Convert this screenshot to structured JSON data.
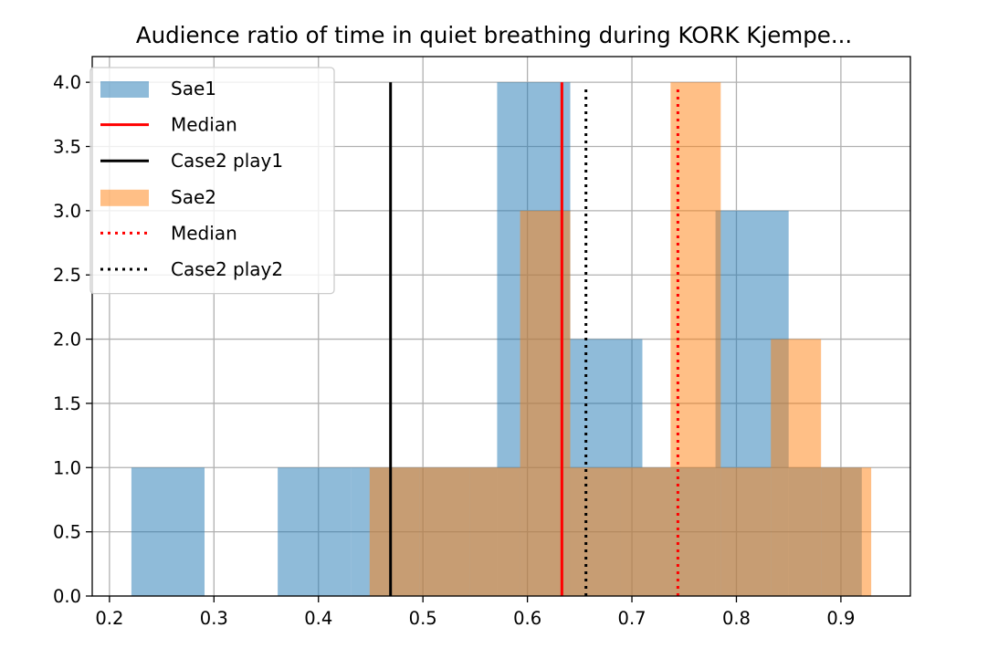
{
  "chart_data": {
    "type": "bar",
    "title": "Audience ratio of time in quiet breathing during KORK Kjempe...",
    "xlabel": "",
    "ylabel": "",
    "xlim": [
      0.1835,
      0.9665
    ],
    "ylim": [
      0,
      4.2
    ],
    "x_ticks": [
      0.2,
      0.3,
      0.4,
      0.5,
      0.6,
      0.7,
      0.8,
      0.9
    ],
    "x_tick_labels": [
      "0.2",
      "0.3",
      "0.4",
      "0.5",
      "0.6",
      "0.7",
      "0.8",
      "0.9"
    ],
    "y_ticks": [
      0.0,
      0.5,
      1.0,
      1.5,
      2.0,
      2.5,
      3.0,
      3.5,
      4.0
    ],
    "y_tick_labels": [
      "0.0",
      "0.5",
      "1.0",
      "1.5",
      "2.0",
      "2.5",
      "3.0",
      "3.5",
      "4.0"
    ],
    "grid": true,
    "legend_position": "upper-left",
    "series": [
      {
        "name": "Sae1",
        "kind": "histogram",
        "color": "#1f77b4",
        "alpha": 0.5,
        "bins": [
          {
            "start": 0.221,
            "end": 0.291,
            "count": 1
          },
          {
            "start": 0.291,
            "end": 0.361,
            "count": 0
          },
          {
            "start": 0.361,
            "end": 0.431,
            "count": 1
          },
          {
            "start": 0.431,
            "end": 0.501,
            "count": 1
          },
          {
            "start": 0.501,
            "end": 0.571,
            "count": 1
          },
          {
            "start": 0.571,
            "end": 0.641,
            "count": 4
          },
          {
            "start": 0.641,
            "end": 0.71,
            "count": 2
          },
          {
            "start": 0.71,
            "end": 0.78,
            "count": 1
          },
          {
            "start": 0.78,
            "end": 0.85,
            "count": 3
          },
          {
            "start": 0.85,
            "end": 0.92,
            "count": 1
          }
        ]
      },
      {
        "name": "Sae2",
        "kind": "histogram",
        "color": "#ff7f0e",
        "alpha": 0.5,
        "bins": [
          {
            "start": 0.449,
            "end": 0.497,
            "count": 1
          },
          {
            "start": 0.497,
            "end": 0.545,
            "count": 1
          },
          {
            "start": 0.545,
            "end": 0.593,
            "count": 1
          },
          {
            "start": 0.593,
            "end": 0.641,
            "count": 3
          },
          {
            "start": 0.641,
            "end": 0.689,
            "count": 1
          },
          {
            "start": 0.689,
            "end": 0.737,
            "count": 1
          },
          {
            "start": 0.737,
            "end": 0.785,
            "count": 4
          },
          {
            "start": 0.785,
            "end": 0.833,
            "count": 1
          },
          {
            "start": 0.833,
            "end": 0.881,
            "count": 2
          },
          {
            "start": 0.881,
            "end": 0.929,
            "count": 1
          }
        ]
      }
    ],
    "reference_lines": [
      {
        "name": "Median",
        "x": 0.633,
        "y_max": 4.0,
        "color": "#ff0000",
        "style": "solid"
      },
      {
        "name": "Case2 play1",
        "x": 0.469,
        "y_max": 4.0,
        "color": "#000000",
        "style": "solid"
      },
      {
        "name": "Median",
        "x": 0.744,
        "y_max": 3.95,
        "color": "#ff0000",
        "style": "dotted"
      },
      {
        "name": "Case2 play2",
        "x": 0.656,
        "y_max": 3.95,
        "color": "#000000",
        "style": "dotted"
      }
    ],
    "legend": [
      {
        "label": "Sae1",
        "kind": "patch",
        "color": "#1f77b4",
        "alpha": 0.5,
        "style": "solid"
      },
      {
        "label": "Median",
        "kind": "line",
        "color": "#ff0000",
        "style": "solid"
      },
      {
        "label": "Case2 play1",
        "kind": "line",
        "color": "#000000",
        "style": "solid"
      },
      {
        "label": "Sae2",
        "kind": "patch",
        "color": "#ff7f0e",
        "alpha": 0.5,
        "style": "solid"
      },
      {
        "label": "Median",
        "kind": "line",
        "color": "#ff0000",
        "style": "dotted"
      },
      {
        "label": "Case2 play2",
        "kind": "line",
        "color": "#000000",
        "style": "dotted"
      }
    ]
  }
}
